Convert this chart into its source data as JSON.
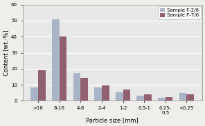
{
  "categories": [
    ">16",
    "8-16",
    "4-8",
    "2-4",
    "1-2",
    "0.5-1",
    "0.25-\n0.5",
    "<0.25"
  ],
  "series": [
    {
      "name": "Sample F-2/6",
      "values": [
        8.5,
        51,
        17.5,
        8.5,
        5.5,
        3,
        2,
        5
      ],
      "color": "#aab4c8"
    },
    {
      "name": "Sample F-7/6",
      "values": [
        19,
        40,
        14.5,
        9.5,
        7,
        4,
        2.5,
        4
      ],
      "color": "#906070"
    }
  ],
  "ylabel": "Content [wt.-%]",
  "xlabel": "Particle size [mm]",
  "ylim": [
    0,
    60
  ],
  "yticks": [
    0,
    10,
    20,
    30,
    40,
    50,
    60
  ],
  "plot_bg_color": "#e8e8e8",
  "fig_bg_color": "#f0eeeb",
  "grid_color": "#ffffff",
  "legend_loc": "upper right",
  "bar_width": 0.35,
  "tick_fontsize": 5.0,
  "label_fontsize": 6.0,
  "legend_fontsize": 5.0
}
